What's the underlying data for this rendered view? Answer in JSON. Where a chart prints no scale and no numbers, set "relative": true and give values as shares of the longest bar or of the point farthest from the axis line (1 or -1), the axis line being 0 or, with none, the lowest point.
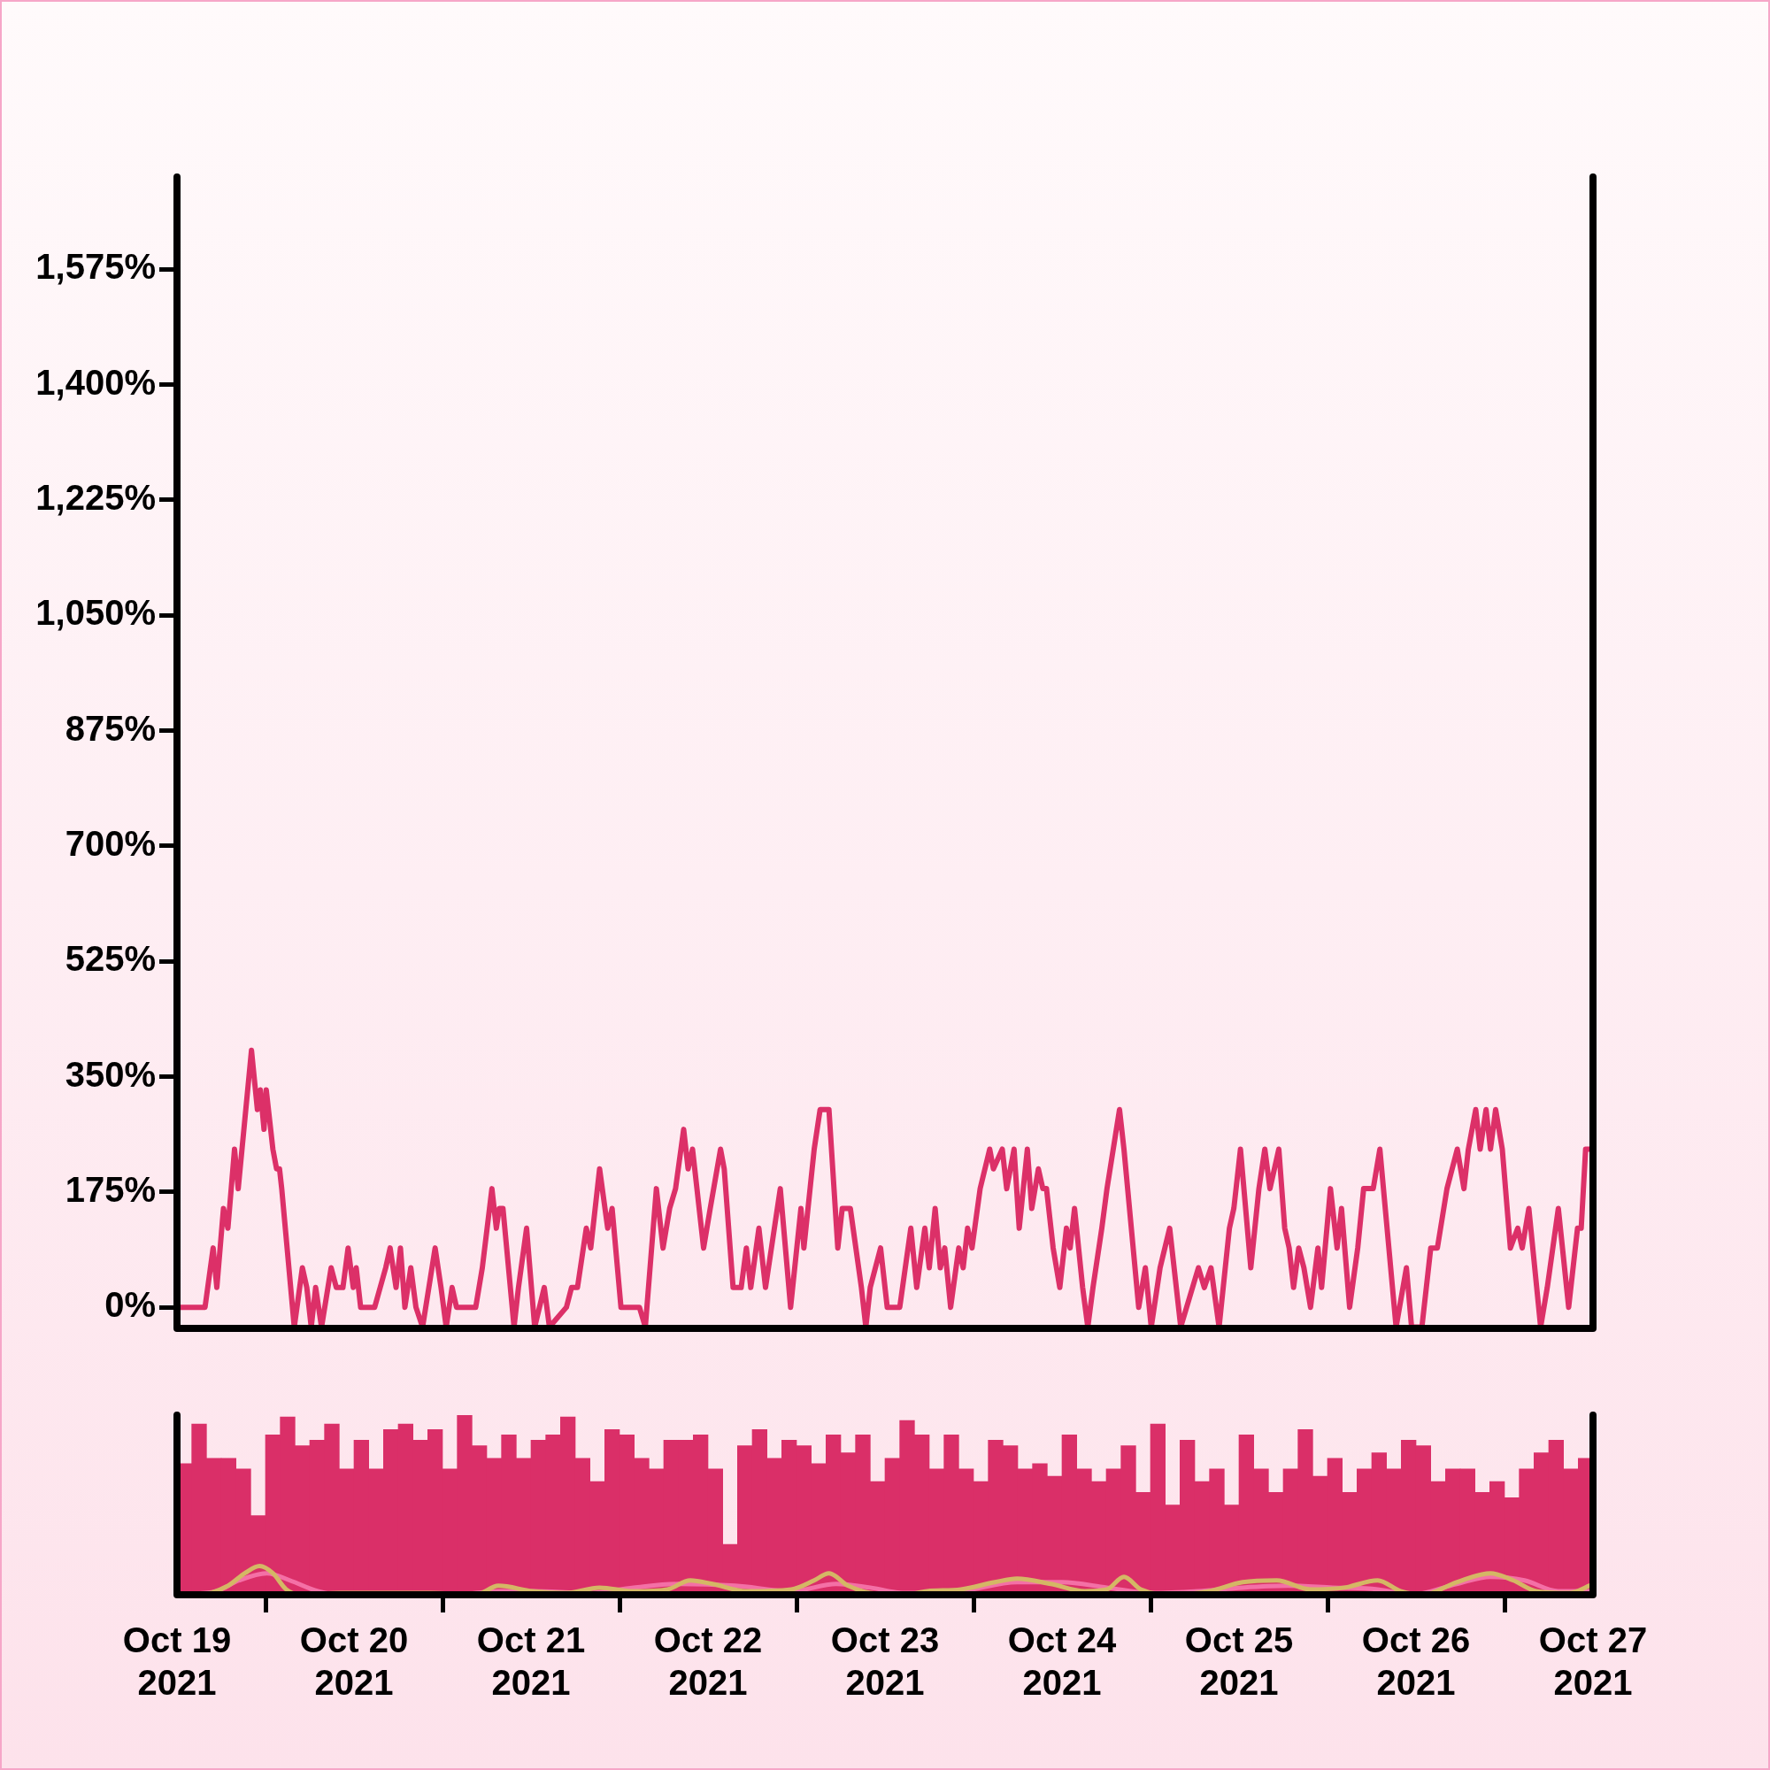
{
  "chart_data": [
    {
      "type": "line",
      "color": "#dc3068",
      "xlim": [
        "2021-10-19",
        "2021-10-27"
      ],
      "ylim": [
        -32,
        1715
      ],
      "yticks": [
        {
          "value": 0,
          "label": "0%"
        },
        {
          "value": 175,
          "label": "175%"
        },
        {
          "value": 350,
          "label": "350%"
        },
        {
          "value": 525,
          "label": "525%"
        },
        {
          "value": 700,
          "label": "700%"
        },
        {
          "value": 875,
          "label": "875%"
        },
        {
          "value": 1050,
          "label": "1,050%"
        },
        {
          "value": 1225,
          "label": "1,225%"
        },
        {
          "value": 1400,
          "label": "1,400%"
        },
        {
          "value": 1575,
          "label": "1,575%"
        }
      ],
      "tick_labels": "y",
      "x": [
        "2021-10-19T00:00",
        "2021-10-19T00:48",
        "2021-10-19T03:48",
        "2021-10-19T04:54",
        "2021-10-19T05:24",
        "2021-10-19T06:18",
        "2021-10-19T06:54",
        "2021-10-19T07:48",
        "2021-10-19T08:18",
        "2021-10-19T10:06",
        "2021-10-19T10:54",
        "2021-10-19T11:18",
        "2021-10-19T11:48",
        "2021-10-19T12:06",
        "2021-10-19T13:00",
        "2021-10-19T13:30",
        "2021-10-19T13:54",
        "2021-10-19T14:12",
        "2021-10-19T15:54",
        "2021-10-19T17:00",
        "2021-10-19T17:36",
        "2021-10-19T18:12",
        "2021-10-19T18:48",
        "2021-10-19T19:36",
        "2021-10-19T20:54",
        "2021-10-19T21:36",
        "2021-10-19T22:30",
        "2021-10-19T23:12",
        "2021-10-19T23:54",
        "2021-10-20T00:18",
        "2021-10-20T00:54",
        "2021-10-20T02:48",
        "2021-10-20T04:18",
        "2021-10-20T04:54",
        "2021-10-20T05:42",
        "2021-10-20T06:18",
        "2021-10-20T06:54",
        "2021-10-20T07:42",
        "2021-10-20T08:24",
        "2021-10-20T09:18",
        "2021-10-20T11:00",
        "2021-10-20T11:48",
        "2021-10-20T12:30",
        "2021-10-20T13:18",
        "2021-10-20T13:54",
        "2021-10-20T16:30",
        "2021-10-20T17:24",
        "2021-10-20T18:42",
        "2021-10-20T19:18",
        "2021-10-20T19:42",
        "2021-10-20T20:12",
        "2021-10-20T21:42",
        "2021-10-20T22:18",
        "2021-10-20T23:24",
        "2021-10-21T00:30",
        "2021-10-21T01:48",
        "2021-10-21T02:30",
        "2021-10-21T04:48",
        "2021-10-21T05:30",
        "2021-10-21T06:18",
        "2021-10-21T07:30",
        "2021-10-21T08:06",
        "2021-10-21T09:18",
        "2021-10-21T10:24",
        "2021-10-21T11:00",
        "2021-10-21T12:12",
        "2021-10-21T13:12",
        "2021-10-21T14:42",
        "2021-10-21T15:30",
        "2021-10-21T17:00",
        "2021-10-21T17:54",
        "2021-10-21T18:48",
        "2021-10-21T19:36",
        "2021-10-21T20:42",
        "2021-10-21T21:18",
        "2021-10-21T21:54",
        "2021-10-21T23:24",
        "2021-10-22T00:18",
        "2021-10-22T01:42",
        "2021-10-22T02:12",
        "2021-10-22T03:24",
        "2021-10-22T04:30",
        "2021-10-22T05:12",
        "2021-10-22T05:48",
        "2021-10-22T06:54",
        "2021-10-22T07:48",
        "2021-10-22T09:48",
        "2021-10-22T11:12",
        "2021-10-22T12:36",
        "2021-10-22T13:00",
        "2021-10-22T14:24",
        "2021-10-22T15:12",
        "2021-10-22T16:24",
        "2021-10-22T17:36",
        "2021-10-22T18:12",
        "2021-10-22T19:18",
        "2021-10-22T20:48",
        "2021-10-22T21:24",
        "2021-10-22T22:00",
        "2021-10-22T23:24",
        "2021-10-23T00:18",
        "2021-10-23T02:00",
        "2021-10-23T03:30",
        "2021-10-23T04:18",
        "2021-10-23T05:24",
        "2021-10-23T06:00",
        "2021-10-23T06:48",
        "2021-10-23T07:30",
        "2021-10-23T08:06",
        "2021-10-23T08:54",
        "2021-10-23T10:00",
        "2021-10-23T10:36",
        "2021-10-23T11:12",
        "2021-10-23T11:48",
        "2021-10-23T12:54",
        "2021-10-23T14:12",
        "2021-10-23T14:42",
        "2021-10-23T15:54",
        "2021-10-23T16:30",
        "2021-10-23T17:30",
        "2021-10-23T18:12",
        "2021-10-23T19:18",
        "2021-10-23T19:54",
        "2021-10-23T20:48",
        "2021-10-23T21:24",
        "2021-10-23T21:54",
        "2021-10-23T22:48",
        "2021-10-23T23:42",
        "2021-10-24T00:36",
        "2021-10-24T01:06",
        "2021-10-24T01:42",
        "2021-10-24T02:48",
        "2021-10-24T03:30",
        "2021-10-24T04:12",
        "2021-10-24T05:24",
        "2021-10-24T06:06",
        "2021-10-24T07:48",
        "2021-10-24T08:24",
        "2021-10-24T10:24",
        "2021-10-24T11:18",
        "2021-10-24T12:06",
        "2021-10-24T13:18",
        "2021-10-24T14:36",
        "2021-10-24T16:06",
        "2021-10-24T16:54",
        "2021-10-24T18:30",
        "2021-10-24T19:18",
        "2021-10-24T20:12",
        "2021-10-24T21:18",
        "2021-10-24T22:42",
        "2021-10-24T23:18",
        "2021-10-25T00:12",
        "2021-10-25T01:36",
        "2021-10-25T02:42",
        "2021-10-25T03:30",
        "2021-10-25T04:12",
        "2021-10-25T05:24",
        "2021-10-25T06:12",
        "2021-10-25T06:48",
        "2021-10-25T07:24",
        "2021-10-25T08:06",
        "2021-10-25T08:48",
        "2021-10-25T09:42",
        "2021-10-25T10:42",
        "2021-10-25T11:12",
        "2021-10-25T12:24",
        "2021-10-25T13:18",
        "2021-10-25T13:54",
        "2021-10-25T15:00",
        "2021-10-25T16:06",
        "2021-10-25T16:54",
        "2021-10-25T18:12",
        "2021-10-25T19:06",
        "2021-10-25T21:18",
        "2021-10-25T22:42",
        "2021-10-25T23:24",
        "2021-10-26T00:48",
        "2021-10-26T02:00",
        "2021-10-26T02:54",
        "2021-10-26T04:12",
        "2021-10-26T05:36",
        "2021-10-26T06:30",
        "2021-10-26T07:06",
        "2021-10-26T08:06",
        "2021-10-26T08:42",
        "2021-10-26T09:30",
        "2021-10-26T10:06",
        "2021-10-26T10:48",
        "2021-10-26T11:42",
        "2021-10-26T12:48",
        "2021-10-26T13:48",
        "2021-10-26T14:24",
        "2021-10-26T15:18",
        "2021-10-26T16:54",
        "2021-10-26T17:48",
        "2021-10-26T19:18",
        "2021-10-26T20:42",
        "2021-10-26T21:54",
        "2021-10-26T22:24",
        "2021-10-26T23:00",
        "2021-10-27T00:00"
      ],
      "values": [
        0,
        0,
        0,
        90,
        30,
        150,
        120,
        240,
        180,
        390,
        300,
        330,
        270,
        330,
        240,
        210,
        210,
        180,
        -30,
        60,
        30,
        -30,
        30,
        -30,
        60,
        30,
        30,
        90,
        30,
        60,
        0,
        0,
        60,
        90,
        30,
        90,
        0,
        60,
        0,
        -30,
        90,
        30,
        -30,
        30,
        0,
        0,
        60,
        180,
        120,
        150,
        150,
        -30,
        30,
        120,
        -30,
        30,
        -30,
        0,
        30,
        30,
        120,
        90,
        210,
        120,
        150,
        0,
        0,
        0,
        -30,
        180,
        90,
        150,
        180,
        270,
        210,
        240,
        90,
        150,
        240,
        210,
        30,
        30,
        90,
        30,
        120,
        30,
        180,
        0,
        150,
        90,
        240,
        300,
        300,
        90,
        150,
        150,
        30,
        -30,
        30,
        90,
        0,
        0,
        120,
        30,
        120,
        60,
        150,
        60,
        90,
        0,
        90,
        60,
        120,
        90,
        180,
        240,
        210,
        240,
        180,
        240,
        120,
        240,
        150,
        210,
        180,
        180,
        90,
        30,
        120,
        90,
        150,
        30,
        -30,
        30,
        120,
        180,
        300,
        240,
        0,
        60,
        -30,
        60,
        120,
        -30,
        0,
        60,
        30,
        60,
        -30,
        120,
        150,
        240,
        60,
        180,
        240,
        180,
        240,
        120,
        90,
        30,
        90,
        60,
        0,
        90,
        30,
        180,
        90,
        150,
        0,
        90,
        180,
        180,
        240,
        -30,
        60,
        -30,
        -30,
        90,
        90,
        180,
        240,
        180,
        240,
        300,
        240,
        300,
        240,
        300,
        240,
        90,
        120,
        90,
        150,
        -30,
        30,
        150,
        0,
        120,
        120,
        240,
        240
      ]
    },
    {
      "type": "bar",
      "relative": true,
      "xlim": [
        "2021-10-19",
        "2021-10-27"
      ],
      "tick_labels": "x",
      "xticks": [
        {
          "value": "2021-10-19",
          "label": "Oct 19\n2021"
        },
        {
          "value": "2021-10-20",
          "label": "Oct 20\n2021"
        },
        {
          "value": "2021-10-21",
          "label": "Oct 21\n2021"
        },
        {
          "value": "2021-10-22",
          "label": "Oct 22\n2021"
        },
        {
          "value": "2021-10-23",
          "label": "Oct 23\n2021"
        },
        {
          "value": "2021-10-24",
          "label": "Oct 24\n2021"
        },
        {
          "value": "2021-10-25",
          "label": "Oct 25\n2021"
        },
        {
          "value": "2021-10-26",
          "label": "Oct 26\n2021"
        },
        {
          "value": "2021-10-27",
          "label": "Oct 27\n2021"
        }
      ],
      "series": [
        {
          "type": "bar",
          "color": "#da2f68",
          "x": [
            "2021-10-19T01:00",
            "2021-10-19T03:00",
            "2021-10-19T05:00",
            "2021-10-19T07:00",
            "2021-10-19T09:00",
            "2021-10-19T11:00",
            "2021-10-19T13:00",
            "2021-10-19T15:00",
            "2021-10-19T17:00",
            "2021-10-19T19:00",
            "2021-10-19T21:00",
            "2021-10-19T23:00",
            "2021-10-20T01:00",
            "2021-10-20T03:00",
            "2021-10-20T05:00",
            "2021-10-20T07:00",
            "2021-10-20T09:00",
            "2021-10-20T11:00",
            "2021-10-20T13:00",
            "2021-10-20T15:00",
            "2021-10-20T17:00",
            "2021-10-20T19:00",
            "2021-10-20T21:00",
            "2021-10-20T23:00",
            "2021-10-21T01:00",
            "2021-10-21T03:00",
            "2021-10-21T05:00",
            "2021-10-21T07:00",
            "2021-10-21T09:00",
            "2021-10-21T11:00",
            "2021-10-21T13:00",
            "2021-10-21T15:00",
            "2021-10-21T17:00",
            "2021-10-21T19:00",
            "2021-10-21T21:00",
            "2021-10-21T23:00",
            "2021-10-22T01:00",
            "2021-10-22T03:00",
            "2021-10-22T05:00",
            "2021-10-22T07:00",
            "2021-10-22T09:00",
            "2021-10-22T11:00",
            "2021-10-22T13:00",
            "2021-10-22T15:00",
            "2021-10-22T17:00",
            "2021-10-22T19:00",
            "2021-10-22T21:00",
            "2021-10-22T23:00",
            "2021-10-23T01:00",
            "2021-10-23T03:00",
            "2021-10-23T05:00",
            "2021-10-23T07:00",
            "2021-10-23T09:00",
            "2021-10-23T11:00",
            "2021-10-23T13:00",
            "2021-10-23T15:00",
            "2021-10-23T17:00",
            "2021-10-23T19:00",
            "2021-10-23T21:00",
            "2021-10-23T23:00",
            "2021-10-24T01:00",
            "2021-10-24T03:00",
            "2021-10-24T05:00",
            "2021-10-24T07:00",
            "2021-10-24T09:00",
            "2021-10-24T11:00",
            "2021-10-24T13:00",
            "2021-10-24T15:00",
            "2021-10-24T17:00",
            "2021-10-24T19:00",
            "2021-10-24T21:00",
            "2021-10-24T23:00",
            "2021-10-25T01:00",
            "2021-10-25T03:00",
            "2021-10-25T05:00",
            "2021-10-25T07:00",
            "2021-10-25T09:00",
            "2021-10-25T11:00",
            "2021-10-25T13:00",
            "2021-10-25T15:00",
            "2021-10-25T17:00",
            "2021-10-25T19:00",
            "2021-10-25T21:00",
            "2021-10-25T23:00",
            "2021-10-26T01:00",
            "2021-10-26T03:00",
            "2021-10-26T05:00",
            "2021-10-26T07:00",
            "2021-10-26T09:00",
            "2021-10-26T11:00",
            "2021-10-26T13:00",
            "2021-10-26T15:00",
            "2021-10-26T17:00",
            "2021-10-26T19:00",
            "2021-10-26T21:00",
            "2021-10-26T23:00"
          ],
          "values": [
            0.73,
            0.95,
            0.76,
            0.76,
            0.7,
            0.44,
            0.89,
            0.99,
            0.83,
            0.86,
            0.95,
            0.7,
            0.86,
            0.7,
            0.92,
            0.95,
            0.86,
            0.92,
            0.7,
            1,
            0.83,
            0.76,
            0.89,
            0.76,
            0.86,
            0.89,
            0.99,
            0.76,
            0.63,
            0.92,
            0.89,
            0.76,
            0.7,
            0.86,
            0.86,
            0.89,
            0.7,
            0.28,
            0.83,
            0.92,
            0.76,
            0.86,
            0.83,
            0.73,
            0.89,
            0.79,
            0.89,
            0.63,
            0.76,
            0.97,
            0.89,
            0.7,
            0.89,
            0.7,
            0.63,
            0.86,
            0.83,
            0.7,
            0.73,
            0.66,
            0.89,
            0.7,
            0.63,
            0.7,
            0.83,
            0.57,
            0.95,
            0.5,
            0.86,
            0.63,
            0.7,
            0.5,
            0.89,
            0.7,
            0.57,
            0.7,
            0.92,
            0.66,
            0.76,
            0.57,
            0.7,
            0.79,
            0.7,
            0.86,
            0.83,
            0.63,
            0.7,
            0.7,
            0.57,
            0.63,
            0.54,
            0.7,
            0.79,
            0.86,
            0.7,
            0.76
          ]
        },
        {
          "type": "line",
          "color": "#d4b765",
          "x": [
            "2021-10-19T00:00",
            "2021-10-19T03:06",
            "2021-10-19T06:54",
            "2021-10-19T09:12",
            "2021-10-19T11:12",
            "2021-10-19T13:00",
            "2021-10-19T14:48",
            "2021-10-19T16:48",
            "2021-10-19T22:12",
            "2021-10-20T04:18",
            "2021-10-20T10:24",
            "2021-10-20T16:30",
            "2021-10-20T19:36",
            "2021-10-21T00:12",
            "2021-10-21T04:48",
            "2021-10-21T09:18",
            "2021-10-21T13:54",
            "2021-10-21T18:30",
            "2021-10-21T21:36",
            "2021-10-22T00:36",
            "2021-10-22T05:12",
            "2021-10-22T11:18",
            "2021-10-22T14:24",
            "2021-10-22T16:24",
            "2021-10-22T19:00",
            "2021-10-22T22:00",
            "2021-10-23T02:36",
            "2021-10-23T05:42",
            "2021-10-23T10:18",
            "2021-10-23T14:54",
            "2021-10-23T17:54",
            "2021-10-23T22:30",
            "2021-10-24T03:06",
            "2021-10-24T06:06",
            "2021-10-24T08:24",
            "2021-10-24T10:42",
            "2021-10-24T15:18",
            "2021-10-24T19:54",
            "2021-10-25T00:30",
            "2021-10-25T05:06",
            "2021-10-25T09:42",
            "2021-10-25T14:18",
            "2021-10-25T18:48",
            "2021-10-25T21:54",
            "2021-10-26T01:00",
            "2021-10-26T05:30",
            "2021-10-26T10:06",
            "2021-10-26T13:12",
            "2021-10-26T16:18",
            "2021-10-26T20:48",
            "2021-10-27T00:00"
          ],
          "values": [
            0,
            0,
            0.05,
            0.12,
            0.16,
            0.12,
            0.03,
            0,
            0.01,
            0.01,
            0.01,
            0,
            0.05,
            0.02,
            0.01,
            0.04,
            0.02,
            0.03,
            0.08,
            0.06,
            0.02,
            0.03,
            0.08,
            0.12,
            0.05,
            0.01,
            0,
            0.02,
            0.03,
            0.07,
            0.09,
            0.06,
            0.02,
            0.03,
            0.1,
            0.03,
            0,
            0.02,
            0.07,
            0.08,
            0.03,
            0.04,
            0.08,
            0.02,
            0,
            0.07,
            0.12,
            0.08,
            0.02,
            0.01,
            0.06
          ]
        },
        {
          "type": "line",
          "color": "#f470a6",
          "x": [
            "2021-10-19T00:00",
            "2021-10-19T05:24",
            "2021-10-19T08:24",
            "2021-10-19T12:12",
            "2021-10-19T15:18",
            "2021-10-19T19:06",
            "2021-10-19T22:12",
            "2021-10-20T13:30",
            "2021-10-20T19:36",
            "2021-10-21T00:12",
            "2021-10-21T07:48",
            "2021-10-21T13:54",
            "2021-10-21T20:00",
            "2021-10-22T03:42",
            "2021-10-22T11:18",
            "2021-10-22T17:24",
            "2021-10-22T22:00",
            "2021-10-23T02:36",
            "2021-10-23T10:18",
            "2021-10-23T17:54",
            "2021-10-24T00:00",
            "2021-10-24T06:06",
            "2021-10-24T12:18",
            "2021-10-24T18:24",
            "2021-10-25T00:30",
            "2021-10-25T06:36",
            "2021-10-25T12:42",
            "2021-10-25T18:48",
            "2021-10-25T23:24",
            "2021-10-26T05:30",
            "2021-10-26T10:06",
            "2021-10-26T14:42",
            "2021-10-26T19:18",
            "2021-10-27T00:00"
          ],
          "values": [
            0,
            0.02,
            0.08,
            0.12,
            0.08,
            0.02,
            0,
            0,
            0.02,
            0.02,
            0.01,
            0.04,
            0.06,
            0.05,
            0.02,
            0.06,
            0.04,
            0.01,
            0.02,
            0.07,
            0.07,
            0.04,
            0.01,
            0.02,
            0.04,
            0.05,
            0.04,
            0.03,
            0,
            0.06,
            0.1,
            0.08,
            0.02,
            0.02
          ]
        }
      ]
    }
  ]
}
